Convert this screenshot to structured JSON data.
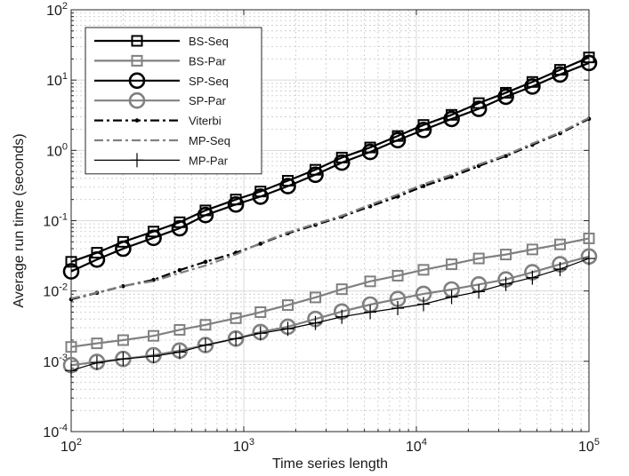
{
  "chart_data": {
    "type": "line",
    "xlabel": "Time series length",
    "ylabel": "Average run time (seconds)",
    "xscale": "log",
    "yscale": "log",
    "xlim": [
      100,
      100000
    ],
    "ylim": [
      0.0001,
      100
    ],
    "grid": true,
    "minor_grid": true,
    "legend_position": "top-left",
    "x_ticks": [
      {
        "base": "10",
        "exp": "2"
      },
      {
        "base": "10",
        "exp": "3"
      },
      {
        "base": "10",
        "exp": "4"
      },
      {
        "base": "10",
        "exp": "5"
      }
    ],
    "y_ticks": [
      {
        "base": "10",
        "exp": "-4"
      },
      {
        "base": "10",
        "exp": "-3"
      },
      {
        "base": "10",
        "exp": "-2"
      },
      {
        "base": "10",
        "exp": "-1"
      },
      {
        "base": "10",
        "exp": "0"
      },
      {
        "base": "10",
        "exp": "1"
      },
      {
        "base": "10",
        "exp": "2"
      }
    ],
    "x": [
      100,
      141,
      200,
      300,
      425,
      600,
      900,
      1250,
      1800,
      2600,
      3700,
      5400,
      7800,
      11000,
      16000,
      23000,
      33000,
      47000,
      68000,
      100000
    ],
    "series": [
      {
        "name": "BS-Seq",
        "color": "#000000",
        "marker": "square",
        "line": "solid",
        "width": 2.2,
        "values": [
          0.026,
          0.035,
          0.05,
          0.07,
          0.095,
          0.14,
          0.2,
          0.26,
          0.37,
          0.53,
          0.79,
          1.1,
          1.6,
          2.3,
          3.2,
          4.7,
          6.6,
          9.4,
          14,
          21
        ]
      },
      {
        "name": "BS-Par",
        "color": "#808080",
        "marker": "square",
        "line": "solid",
        "width": 2.2,
        "values": [
          0.0016,
          0.0018,
          0.002,
          0.0023,
          0.0028,
          0.0033,
          0.0041,
          0.005,
          0.0063,
          0.0081,
          0.0106,
          0.0137,
          0.0165,
          0.02,
          0.024,
          0.029,
          0.033,
          0.039,
          0.046,
          0.056
        ]
      },
      {
        "name": "SP-Seq",
        "color": "#000000",
        "marker": "circle",
        "line": "solid",
        "width": 2.2,
        "values": [
          0.019,
          0.028,
          0.04,
          0.057,
          0.078,
          0.12,
          0.17,
          0.22,
          0.31,
          0.45,
          0.67,
          0.95,
          1.4,
          1.95,
          2.8,
          3.9,
          5.8,
          8.1,
          12,
          17.5
        ]
      },
      {
        "name": "SP-Par",
        "color": "#808080",
        "marker": "circle",
        "line": "solid",
        "width": 2.2,
        "values": [
          0.00088,
          0.00098,
          0.00108,
          0.00122,
          0.00142,
          0.0017,
          0.0021,
          0.0026,
          0.0031,
          0.004,
          0.0051,
          0.0064,
          0.0077,
          0.0091,
          0.0105,
          0.0124,
          0.0146,
          0.0185,
          0.024,
          0.031
        ]
      },
      {
        "name": "Viterbi",
        "color": "#000000",
        "marker": "dot",
        "line": "dashdot",
        "width": 2.2,
        "values": [
          0.0076,
          0.0094,
          0.0117,
          0.0144,
          0.0198,
          0.026,
          0.035,
          0.047,
          0.066,
          0.087,
          0.114,
          0.16,
          0.22,
          0.31,
          0.42,
          0.6,
          0.83,
          1.2,
          1.75,
          2.8
        ]
      },
      {
        "name": "MP-Seq",
        "color": "#808080",
        "marker": "none",
        "line": "dashdot",
        "width": 2.2,
        "values": [
          0.0078,
          0.0095,
          0.0118,
          0.0138,
          0.018,
          0.023,
          0.033,
          0.048,
          0.068,
          0.09,
          0.118,
          0.168,
          0.235,
          0.33,
          0.45,
          0.63,
          0.86,
          1.25,
          1.8,
          2.9
        ]
      },
      {
        "name": "MP-Par",
        "color": "#000000",
        "marker": "plus",
        "line": "solid",
        "width": 1.2,
        "values": [
          0.00074,
          0.00095,
          0.00108,
          0.00118,
          0.00135,
          0.0017,
          0.0021,
          0.0025,
          0.0029,
          0.0035,
          0.0043,
          0.005,
          0.0057,
          0.0065,
          0.0082,
          0.0098,
          0.0126,
          0.0155,
          0.0205,
          0.029
        ]
      }
    ]
  }
}
